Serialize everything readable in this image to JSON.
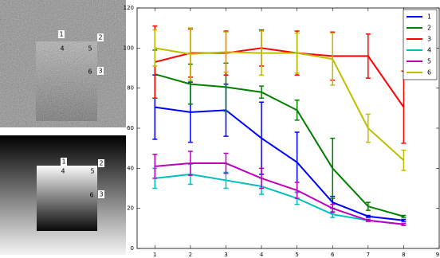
{
  "image_labels": [
    [
      "1",
      "2",
      "3",
      "4",
      "5",
      "6"
    ],
    [
      "1",
      "2",
      "3",
      "4",
      "5",
      "6"
    ]
  ],
  "chart_data": {
    "type": "line",
    "x": [
      1,
      2,
      3,
      4,
      5,
      6,
      7,
      8
    ],
    "xlim": [
      0.5,
      9
    ],
    "xticks": [
      1,
      2,
      3,
      4,
      5,
      6,
      7,
      8,
      9
    ],
    "ylim": [
      0,
      120
    ],
    "yticks": [
      0,
      20,
      40,
      60,
      80,
      100,
      120
    ],
    "legend": "upper right",
    "series": [
      {
        "name": "1",
        "color": "#0000ff",
        "values": [
          70.5,
          68,
          69,
          55,
          43,
          23,
          16,
          14
        ],
        "errors": [
          16,
          15,
          13,
          18,
          15,
          3,
          0.5,
          0.5
        ]
      },
      {
        "name": "2",
        "color": "#008000",
        "values": [
          87,
          82,
          80.5,
          78,
          69,
          40,
          21,
          16
        ],
        "errors": [
          12,
          10,
          12,
          3,
          5,
          15,
          2,
          0.5
        ]
      },
      {
        "name": "3",
        "color": "#ff0000",
        "values": [
          93,
          97.5,
          97.5,
          100,
          97.5,
          96,
          96,
          70.5
        ],
        "errors": [
          18,
          12,
          11,
          9,
          11,
          12,
          11,
          18
        ]
      },
      {
        "name": "4",
        "color": "#00bfbf",
        "values": [
          35,
          37,
          34,
          31,
          25,
          17,
          14,
          12
        ],
        "errors": [
          5,
          5,
          4,
          4,
          3,
          1.5,
          0.5,
          0.5
        ]
      },
      {
        "name": "5",
        "color": "#bf00bf",
        "values": [
          41,
          42.5,
          42.5,
          35,
          29,
          20,
          14,
          12
        ],
        "errors": [
          6,
          6,
          5,
          5,
          4,
          2,
          0.5,
          0.5
        ]
      },
      {
        "name": "6",
        "color": "#bfbf00",
        "values": [
          100,
          97,
          98,
          97.5,
          97.5,
          94.5,
          60,
          44
        ],
        "errors": [
          9,
          13,
          10,
          11,
          10,
          13,
          7,
          5
        ]
      }
    ]
  }
}
